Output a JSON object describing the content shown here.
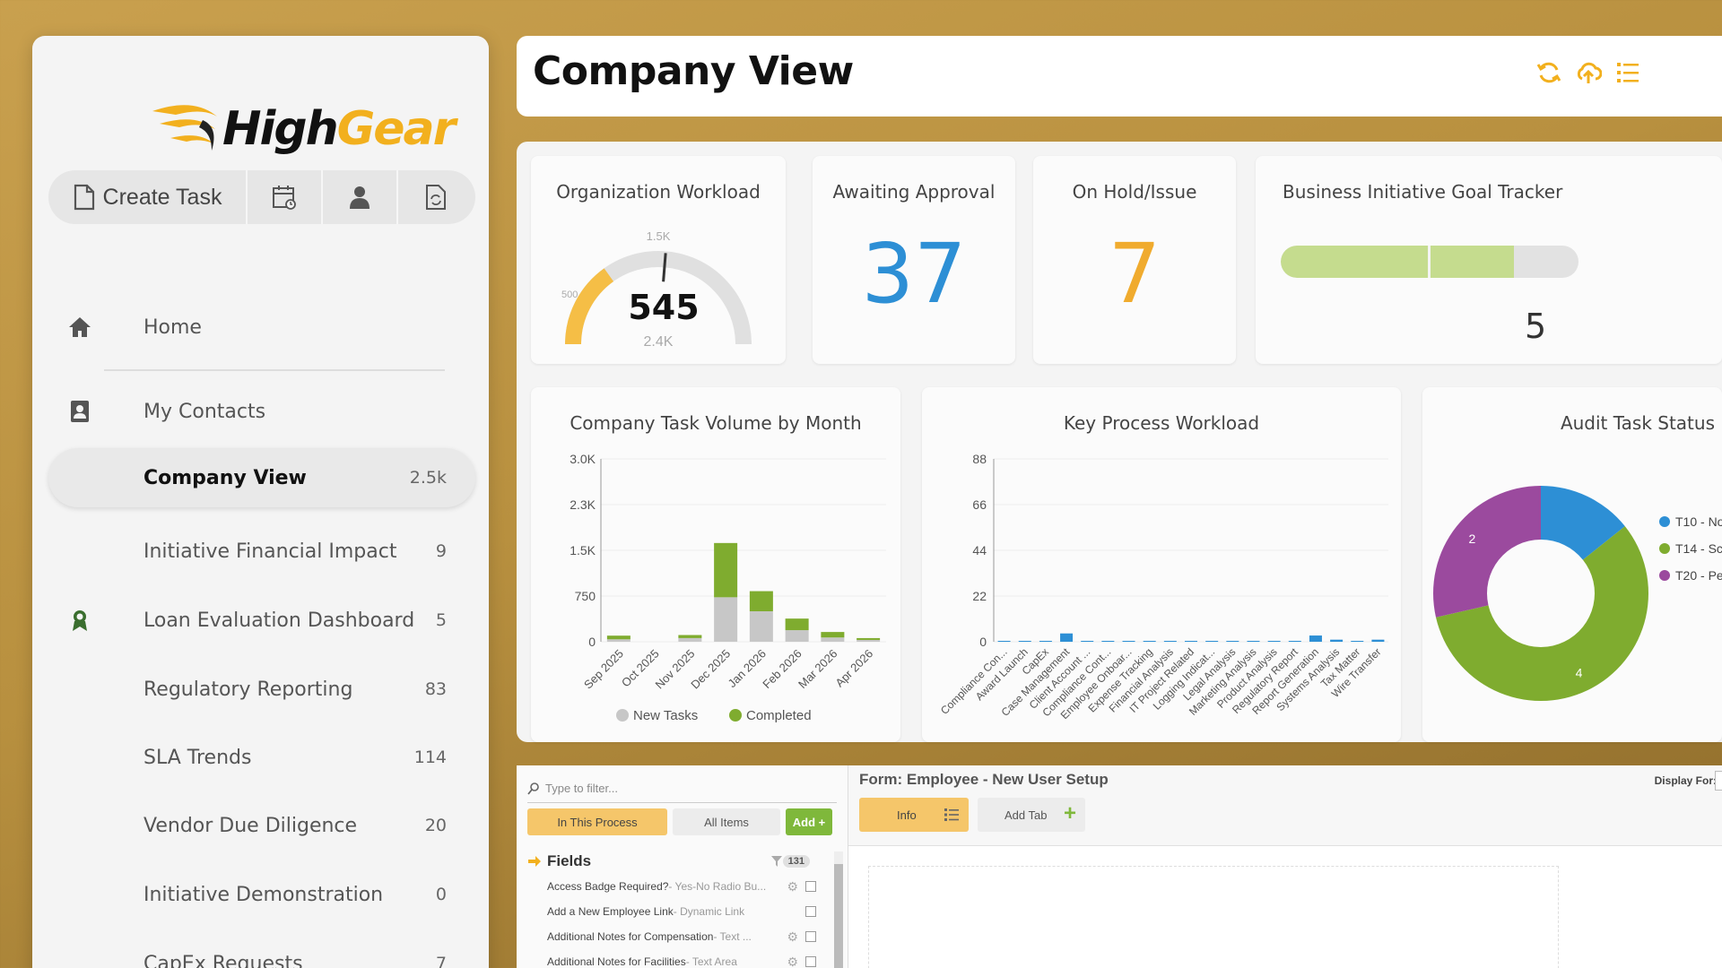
{
  "sidebar": {
    "logo": {
      "high": "High",
      "gear": "Gear"
    },
    "create_task_label": "Create Task",
    "items": [
      {
        "label": "Home",
        "count": "",
        "icon": "home-icon"
      },
      {
        "label": "My Contacts",
        "count": "",
        "icon": "contacts-icon"
      },
      {
        "label": "Company View",
        "count": "2.5k",
        "icon": ""
      },
      {
        "label": "Initiative Financial Impact",
        "count": "9",
        "icon": ""
      },
      {
        "label": "Loan Evaluation Dashboard",
        "count": "5",
        "icon": "award-icon"
      },
      {
        "label": "Regulatory Reporting",
        "count": "83",
        "icon": ""
      },
      {
        "label": "SLA Trends",
        "count": "114",
        "icon": ""
      },
      {
        "label": "Vendor Due Diligence",
        "count": "20",
        "icon": ""
      },
      {
        "label": "Initiative Demonstration",
        "count": "0",
        "icon": ""
      },
      {
        "label": "CapEx Requests",
        "count": "7",
        "icon": ""
      }
    ]
  },
  "header": {
    "title": "Company View"
  },
  "widgets": {
    "org_workload": {
      "title": "Organization Workload",
      "value": "545",
      "label_min": "500",
      "label_top": "1.5K",
      "label_max": "2.4K"
    },
    "awaiting_approval": {
      "title": "Awaiting Approval",
      "value": "37"
    },
    "on_hold": {
      "title": "On Hold/Issue",
      "value": "7"
    },
    "goal_tracker": {
      "title": "Business Initiative Goal Tracker",
      "value": "5"
    }
  },
  "colors": {
    "accent": "#f2b01e",
    "blue": "#2d8fd5",
    "green": "#7fac2f",
    "purple": "#9b4a9e",
    "gray_bar": "#c7c7c7"
  },
  "chart_data": [
    {
      "type": "bar",
      "title": "Company Task Volume by Month",
      "categories": [
        "Sep 2025",
        "Oct 2025",
        "Nov 2025",
        "Dec 2025",
        "Jan 2026",
        "Feb 2026",
        "Mar 2026",
        "Apr 2026"
      ],
      "series": [
        {
          "name": "New Tasks",
          "values": [
            40,
            0,
            60,
            730,
            500,
            190,
            70,
            30
          ]
        },
        {
          "name": "Completed",
          "values": [
            60,
            0,
            50,
            890,
            330,
            190,
            90,
            30
          ]
        }
      ],
      "yticks": [
        "0",
        "750",
        "1.5K",
        "2.3K",
        "3.0K"
      ],
      "ylim": [
        0,
        3000
      ],
      "stacked": true,
      "legend": "bottom"
    },
    {
      "type": "bar",
      "title": "Key Process Workload",
      "categories": [
        "Compliance Con...",
        "Award Launch",
        "CapEx",
        "Case Management",
        "Client Account ...",
        "Compliance Cont...",
        "Employee Onboar...",
        "Expense Tracking",
        "Financial Analysis",
        "IT Project Related",
        "Logging Indicat...",
        "Legal Analysis",
        "Marketing Analysis",
        "Product Analysis",
        "Regulatory Report",
        "Report Generation",
        "Systems Analysis",
        "Tax Matter",
        "Wire Transfer"
      ],
      "values": [
        0,
        0,
        0,
        4,
        0,
        0,
        0,
        0,
        0,
        0,
        0,
        0,
        0,
        0,
        0,
        3,
        1,
        0,
        1
      ],
      "yticks": [
        "0",
        "22",
        "44",
        "66",
        "88"
      ],
      "ylim": [
        0,
        88
      ]
    },
    {
      "type": "pie",
      "title": "Audit Task Status",
      "labels": [
        "T10 - No",
        "T14 - Sc",
        "T20 - Pe"
      ],
      "values": [
        1,
        4,
        2
      ],
      "colors": [
        "#2d8fd5",
        "#7fac2f",
        "#9b4a9e"
      ],
      "legend": "right"
    }
  ],
  "bottom": {
    "filter_placeholder": "Type to filter...",
    "tab_in_process": "In This Process",
    "tab_all_items": "All Items",
    "add_label": "Add +",
    "fields_label": "Fields",
    "fields_count": "131",
    "fields": [
      {
        "name": "Access Badge Required?",
        "type": " - Yes-No Radio Bu..."
      },
      {
        "name": "Add a New Employee Link",
        "type": " - Dynamic Link"
      },
      {
        "name": "Additional Notes for Compensation",
        "type": " - Text ..."
      },
      {
        "name": "Additional Notes for Facilities",
        "type": " - Text Area"
      }
    ],
    "form_title": "Form: Employee - New User Setup",
    "tab_info": "Info",
    "tab_add": "Add Tab",
    "display_for": "Display For:"
  }
}
